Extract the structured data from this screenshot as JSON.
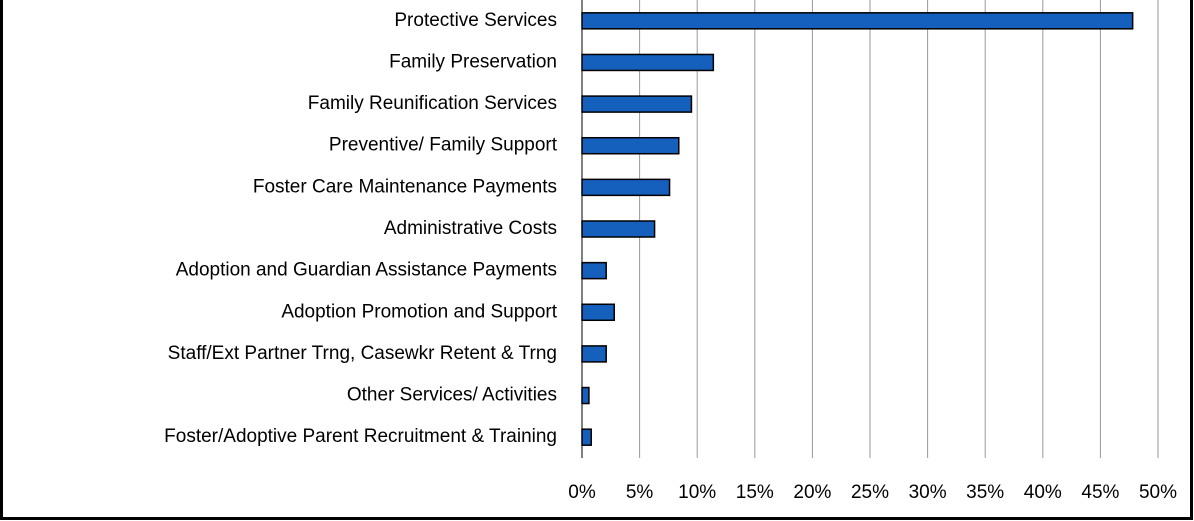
{
  "chart_data": {
    "type": "barh",
    "categories": [
      "Protective Services",
      "Family Preservation",
      "Family Reunification Services",
      "Preventive/ Family Support",
      "Foster Care Maintenance Payments",
      "Administrative Costs",
      "Adoption and Guardian Assistance Payments",
      "Adoption Promotion and Support",
      "Staff/Ext Partner Trng, Casewkr Retent & Trng",
      "Other Services/ Activities",
      "Foster/Adoptive Parent Recruitment & Training"
    ],
    "values": [
      47.8,
      11.4,
      9.5,
      8.4,
      7.6,
      6.3,
      2.1,
      2.8,
      2.1,
      0.6,
      0.8
    ],
    "color": "#1560bd",
    "xlim": [
      0,
      50
    ],
    "xticks": [
      {
        "value": 0,
        "label": "0%"
      },
      {
        "value": 5,
        "label": "5%"
      },
      {
        "value": 10,
        "label": "10%"
      },
      {
        "value": 15,
        "label": "15%"
      },
      {
        "value": 20,
        "label": "20%"
      },
      {
        "value": 25,
        "label": "25%"
      },
      {
        "value": 30,
        "label": "30%"
      },
      {
        "value": 35,
        "label": "35%"
      },
      {
        "value": 40,
        "label": "40%"
      },
      {
        "value": 45,
        "label": "45%"
      },
      {
        "value": 50,
        "label": "50%"
      }
    ],
    "grid": true
  }
}
